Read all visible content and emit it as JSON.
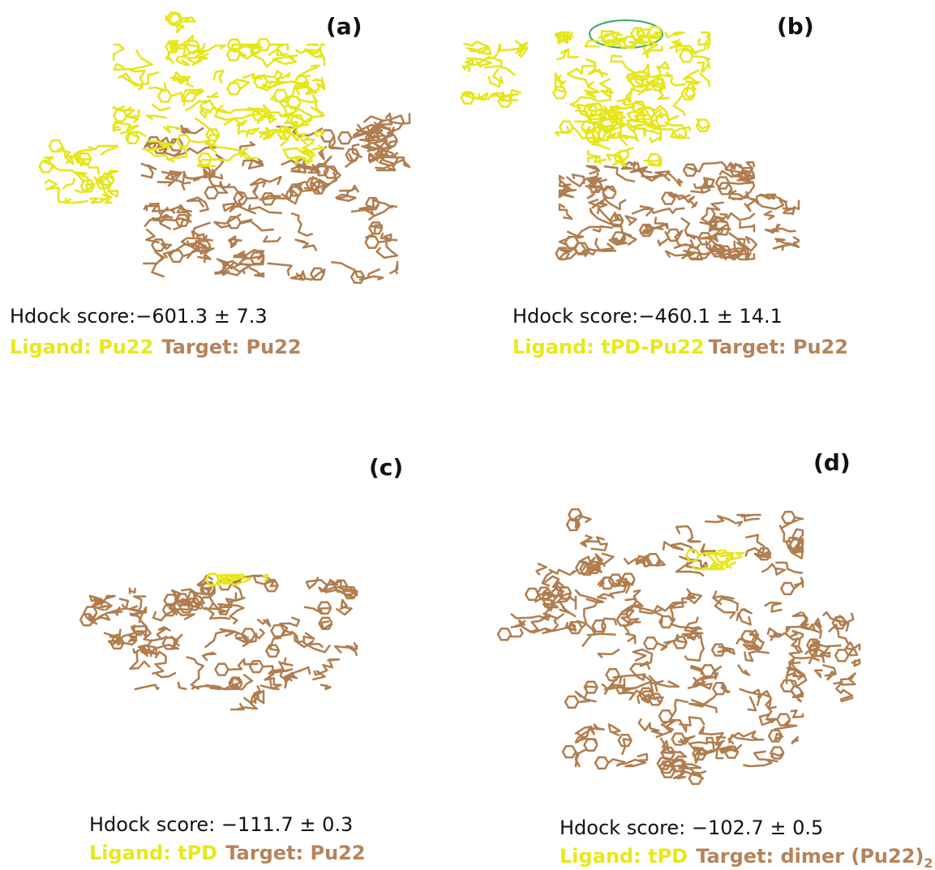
{
  "panels": [
    {
      "label": "(a)",
      "score": "Hdock score:−601.3 ± 7.3",
      "ligand": "Ligand: Pu22",
      "target": "Target: Pu22"
    },
    {
      "label": "(b)",
      "score": "Hdock score:−460.1 ± 14.1",
      "ligand": "Ligand: tPD-Pu22",
      "target": "Target: Pu22"
    },
    {
      "label": "(c)",
      "score": "Hdock score:  −111.7 ± 0.3",
      "ligand": "Ligand: tPD",
      "target": "Target: Pu22"
    },
    {
      "label": "(d)",
      "score": "Hdock score:  −102.7 ± 0.5",
      "ligand": "Ligand: tPD",
      "target": "Target: dimer (Pu22)",
      "target_subscript": "2"
    }
  ]
}
